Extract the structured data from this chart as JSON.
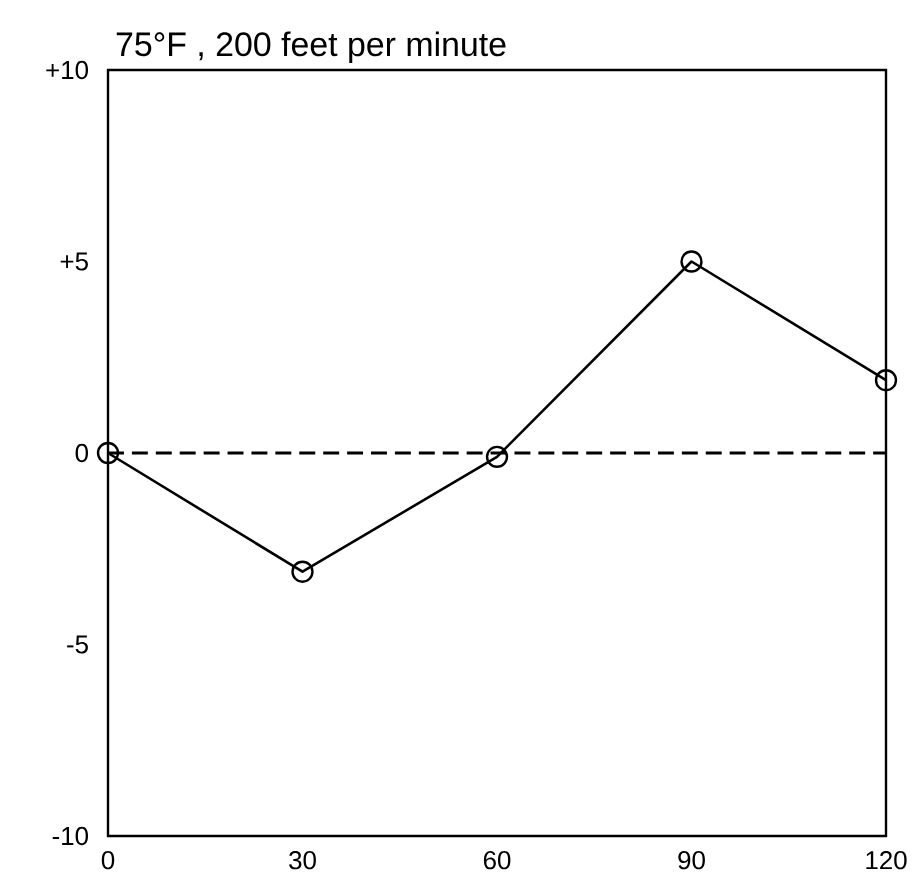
{
  "chart_data": {
    "type": "line",
    "title": "75°F , 200 feet per minute",
    "x": [
      0,
      30,
      60,
      90,
      120
    ],
    "series": [
      {
        "color": "#000000",
        "values": [
          0,
          -3.1,
          -0.1,
          5.0,
          1.9
        ]
      }
    ],
    "xlim": [
      0,
      120
    ],
    "xticks": [
      0,
      30,
      60,
      90,
      120
    ],
    "ylim": [
      -10,
      10
    ],
    "yticks": [
      {
        "value": -10,
        "label": "-10"
      },
      -5,
      0,
      {
        "value": 5,
        "label": "+5"
      },
      {
        "value": 10,
        "label": "+10"
      }
    ],
    "ref_lines": [
      {
        "axis": "y",
        "value": 0,
        "line_style": "dashed",
        "color": "#000000"
      }
    ],
    "grid": false,
    "marker": "circle",
    "line_style": "solid"
  }
}
